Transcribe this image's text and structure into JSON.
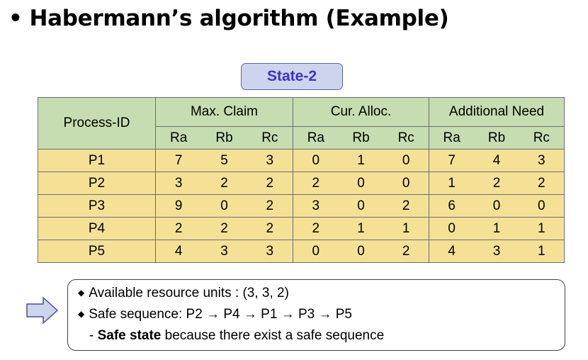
{
  "slide": {
    "title": "Habermann’s algorithm (Example)",
    "bullet": "•"
  },
  "state_label": "State-2",
  "table": {
    "process_header": "Process-ID",
    "groups": [
      "Max. Claim",
      "Cur. Alloc.",
      "Additional Need"
    ],
    "sub_headers": [
      "Ra",
      "Rb",
      "Rc"
    ],
    "rows": [
      {
        "id": "P1",
        "max": [
          "7",
          "5",
          "3"
        ],
        "alloc": [
          "0",
          "1",
          "0"
        ],
        "need": [
          "7",
          "4",
          "3"
        ]
      },
      {
        "id": "P2",
        "max": [
          "3",
          "2",
          "2"
        ],
        "alloc": [
          "2",
          "0",
          "0"
        ],
        "need": [
          "1",
          "2",
          "2"
        ]
      },
      {
        "id": "P3",
        "max": [
          "9",
          "0",
          "2"
        ],
        "alloc": [
          "3",
          "0",
          "2"
        ],
        "need": [
          "6",
          "0",
          "0"
        ]
      },
      {
        "id": "P4",
        "max": [
          "2",
          "2",
          "2"
        ],
        "alloc": [
          "2",
          "1",
          "1"
        ],
        "need": [
          "0",
          "1",
          "1"
        ]
      },
      {
        "id": "P5",
        "max": [
          "4",
          "3",
          "3"
        ],
        "alloc": [
          "0",
          "0",
          "2"
        ],
        "need": [
          "4",
          "3",
          "1"
        ]
      }
    ]
  },
  "info": {
    "available": "Available resource units : (3, 3, 2)",
    "sequence": "Safe sequence: P2 → P4 → P1  → P3 → P5",
    "conclusion_prefix": "- ",
    "conclusion_bold": "Safe state",
    "conclusion_rest": " because there exist a safe sequence"
  },
  "colors": {
    "header_bg": "#c5ddb1",
    "row_bg": "#f5e196",
    "state_bg": "#cdd5ee",
    "state_text": "#3a33c8",
    "arrow_fill": "#cdd5ee"
  },
  "icons": {
    "arrow": "right-arrow-icon",
    "bullet": "diamond-bullet-icon"
  }
}
